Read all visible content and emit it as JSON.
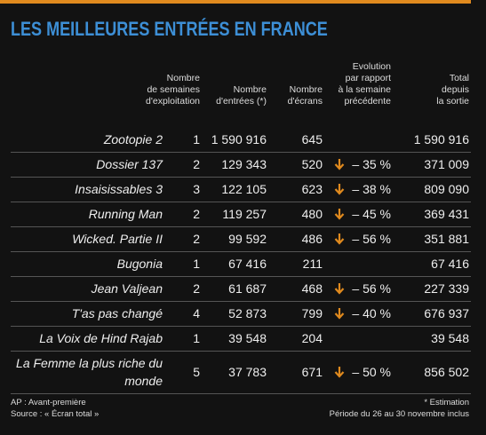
{
  "header": {
    "title": "LES MEILLEURES ENTRÉES EN FRANCE"
  },
  "table": {
    "columns": [
      [],
      [
        "Nombre",
        "de semaines",
        "d'exploitation"
      ],
      [
        "Nombre",
        "d'entrées (*)"
      ],
      [
        "Nombre",
        "d'écrans"
      ],
      [
        "Evolution",
        "par rapport",
        "à la semaine",
        "précédente"
      ],
      [
        "Total",
        "depuis",
        "la sortie"
      ]
    ],
    "rows": [
      [
        "Zootopie 2",
        "1",
        "1 590 916",
        "645",
        null,
        "1 590 916"
      ],
      [
        "Dossier 137",
        "2",
        "129 343",
        "520",
        "– 35 %",
        "371 009"
      ],
      [
        "Insaisissables 3",
        "3",
        "122 105",
        "623",
        "– 38 %",
        "809 090"
      ],
      [
        "Running Man",
        "2",
        "119 257",
        "480",
        "– 45 %",
        "369 431"
      ],
      [
        "Wicked. Partie II",
        "2",
        "99 592",
        "486",
        "– 56 %",
        "351 881"
      ],
      [
        "Bugonia",
        "1",
        "67 416",
        "211",
        null,
        "67 416"
      ],
      [
        "Jean Valjean",
        "2",
        "61 687",
        "468",
        "– 56 %",
        "227 339"
      ],
      [
        "T'as pas changé",
        "4",
        "52 873",
        "799",
        "– 40 %",
        "676 937"
      ],
      [
        "La Voix de Hind Rajab",
        "1",
        "39 548",
        "204",
        null,
        "39 548"
      ],
      [
        "La Femme la plus riche du monde",
        "5",
        "37 783",
        "671",
        "– 50 %",
        "856 502"
      ]
    ]
  },
  "footer": {
    "left": [
      "AP : Avant-première",
      "Source : « Écran total »"
    ],
    "right": [
      "* Estimation",
      "Période du 26 au 30 novembre inclus"
    ]
  }
}
